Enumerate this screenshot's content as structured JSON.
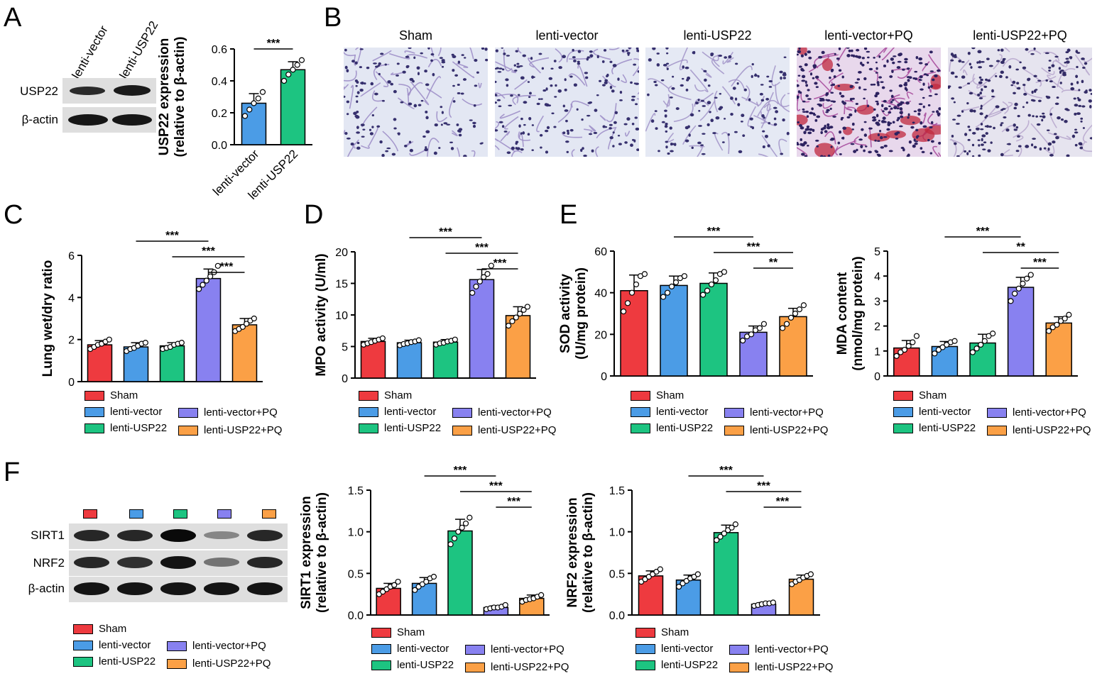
{
  "colors": {
    "Sham": "#ee3a3f",
    "lenti-vector": "#4b9ce6",
    "lenti-USP22": "#1dc481",
    "lenti-vector+PQ": "#8881f0",
    "lenti-USP22+PQ": "#fba046"
  },
  "panels": {
    "A": "A",
    "B": "B",
    "C": "C",
    "D": "D",
    "E": "E",
    "F": "F"
  },
  "blotA": {
    "lanes": [
      "lenti-vector",
      "lenti-USP22"
    ],
    "rows": [
      "USP22",
      "β-actin"
    ]
  },
  "micro": {
    "titles": [
      "Sham",
      "lenti-vector",
      "lenti-USP22",
      "lenti-vector+PQ",
      "lenti-USP22+PQ"
    ]
  },
  "blotF": {
    "rows": [
      "SIRT1",
      "NRF2",
      "β-actin"
    ]
  },
  "legend": {
    "items": [
      "Sham",
      "lenti-vector",
      "lenti-USP22",
      "lenti-vector+PQ",
      "lenti-USP22+PQ"
    ]
  },
  "chart_data": [
    {
      "id": "A",
      "type": "bar",
      "categories": [
        "lenti-vector",
        "lenti-USP22"
      ],
      "values": [
        0.26,
        0.47
      ],
      "errors": [
        0.06,
        0.05
      ],
      "points": [
        [
          0.18,
          0.22,
          0.26,
          0.29,
          0.33
        ],
        [
          0.4,
          0.44,
          0.47,
          0.5,
          0.53
        ]
      ],
      "ylabel": [
        "USP22 expression",
        "(relative to β-actin)"
      ],
      "ylim": [
        0,
        0.6
      ],
      "yticks": [
        "0.0",
        "0.2",
        "0.4",
        "0.6"
      ],
      "sig": [
        {
          "from": 0,
          "to": 1,
          "label": "***"
        }
      ]
    },
    {
      "id": "C",
      "type": "bar",
      "categories": [
        "Sham",
        "lenti-vector",
        "lenti-USP22",
        "lenti-vector+PQ",
        "lenti-USP22+PQ"
      ],
      "values": [
        1.75,
        1.65,
        1.7,
        4.9,
        2.7
      ],
      "errors": [
        0.2,
        0.2,
        0.15,
        0.45,
        0.3
      ],
      "points": [
        [
          1.55,
          1.65,
          1.75,
          1.8,
          1.9,
          2.0
        ],
        [
          1.45,
          1.55,
          1.6,
          1.7,
          1.8,
          1.85
        ],
        [
          1.55,
          1.6,
          1.65,
          1.75,
          1.8,
          1.85
        ],
        [
          4.4,
          4.6,
          4.8,
          5.0,
          5.2,
          5.5
        ],
        [
          2.4,
          2.5,
          2.6,
          2.75,
          2.9,
          3.0
        ]
      ],
      "ylabel": [
        "Lung wet/dry ratio"
      ],
      "ylim": [
        0,
        6
      ],
      "yticks": [
        "0",
        "2",
        "4",
        "6"
      ],
      "sig": [
        {
          "from": 1,
          "to": 3,
          "label": "***"
        },
        {
          "from": 2,
          "to": 4,
          "label": "***"
        },
        {
          "from": 3,
          "to": 4,
          "label": "***"
        }
      ]
    },
    {
      "id": "D",
      "type": "bar",
      "categories": [
        "Sham",
        "lenti-vector",
        "lenti-USP22",
        "lenti-vector+PQ",
        "lenti-USP22+PQ"
      ],
      "values": [
        5.8,
        5.6,
        5.7,
        15.6,
        9.9
      ],
      "errors": [
        0.5,
        0.4,
        0.4,
        1.6,
        1.4
      ],
      "points": [
        [
          5.3,
          5.5,
          5.7,
          5.9,
          6.1,
          6.3
        ],
        [
          5.2,
          5.4,
          5.5,
          5.7,
          5.8,
          6.0
        ],
        [
          5.3,
          5.5,
          5.6,
          5.8,
          5.9,
          6.1
        ],
        [
          13.5,
          14.5,
          15.3,
          16.0,
          16.5,
          17.8
        ],
        [
          8.3,
          9.0,
          9.6,
          10.2,
          10.8,
          11.3
        ]
      ],
      "ylabel": [
        "MPO activity (U/ml)"
      ],
      "ylim": [
        0,
        20
      ],
      "yticks": [
        "0",
        "5",
        "10",
        "15",
        "20"
      ],
      "sig": [
        {
          "from": 1,
          "to": 3,
          "label": "***"
        },
        {
          "from": 2,
          "to": 4,
          "label": "***"
        },
        {
          "from": 3,
          "to": 4,
          "label": "***"
        }
      ]
    },
    {
      "id": "E1",
      "type": "bar",
      "categories": [
        "Sham",
        "lenti-vector",
        "lenti-USP22",
        "lenti-vector+PQ",
        "lenti-USP22+PQ"
      ],
      "values": [
        41,
        43.5,
        44.5,
        21,
        28.5
      ],
      "errors": [
        7.5,
        4.5,
        5,
        3,
        4
      ],
      "points": [
        [
          31,
          35,
          40,
          44,
          48,
          49
        ],
        [
          38,
          40,
          43,
          45,
          47,
          48
        ],
        [
          39,
          41,
          44,
          46,
          49,
          50
        ],
        [
          17,
          19,
          20,
          22,
          23,
          25
        ],
        [
          23,
          25,
          28,
          30,
          32,
          34
        ]
      ],
      "ylabel": [
        "SOD activity",
        "(U/mg protein)"
      ],
      "ylim": [
        0,
        60
      ],
      "yticks": [
        "0",
        "20",
        "40",
        "60"
      ],
      "sig": [
        {
          "from": 1,
          "to": 3,
          "label": "***"
        },
        {
          "from": 2,
          "to": 4,
          "label": "***"
        },
        {
          "from": 3,
          "to": 4,
          "label": "**"
        }
      ]
    },
    {
      "id": "E2",
      "type": "bar",
      "categories": [
        "Sham",
        "lenti-vector",
        "lenti-USP22",
        "lenti-vector+PQ",
        "lenti-USP22+PQ"
      ],
      "values": [
        1.12,
        1.18,
        1.32,
        3.55,
        2.12
      ],
      "errors": [
        0.3,
        0.2,
        0.35,
        0.4,
        0.25
      ],
      "points": [
        [
          0.8,
          0.95,
          1.05,
          1.2,
          1.35,
          1.6
        ],
        [
          0.9,
          1.05,
          1.15,
          1.25,
          1.35,
          1.4
        ],
        [
          0.95,
          1.1,
          1.25,
          1.4,
          1.6,
          1.7
        ],
        [
          3.0,
          3.3,
          3.5,
          3.7,
          3.9,
          4.05
        ],
        [
          1.8,
          1.95,
          2.05,
          2.2,
          2.3,
          2.45
        ]
      ],
      "ylabel": [
        "MDA content",
        "(nmol/mg protein)"
      ],
      "ylim": [
        0,
        5
      ],
      "yticks": [
        "0",
        "1",
        "2",
        "3",
        "4",
        "5"
      ],
      "sig": [
        {
          "from": 1,
          "to": 3,
          "label": "***"
        },
        {
          "from": 2,
          "to": 4,
          "label": "**"
        },
        {
          "from": 3,
          "to": 4,
          "label": "***"
        }
      ]
    },
    {
      "id": "F1",
      "type": "bar",
      "categories": [
        "Sham",
        "lenti-vector",
        "lenti-USP22",
        "lenti-vector+PQ",
        "lenti-USP22+PQ"
      ],
      "values": [
        0.32,
        0.38,
        1.01,
        0.09,
        0.2
      ],
      "errors": [
        0.06,
        0.07,
        0.14,
        0.02,
        0.04
      ],
      "points": [
        [
          0.25,
          0.28,
          0.31,
          0.34,
          0.36,
          0.4
        ],
        [
          0.3,
          0.34,
          0.37,
          0.4,
          0.44,
          0.46
        ],
        [
          0.85,
          0.92,
          1.0,
          1.05,
          1.1,
          1.17
        ],
        [
          0.07,
          0.08,
          0.09,
          0.09,
          0.1,
          0.12
        ],
        [
          0.16,
          0.18,
          0.19,
          0.2,
          0.22,
          0.24
        ]
      ],
      "ylabel": [
        "SIRT1 expression",
        "(relative to β-actin)"
      ],
      "ylim": [
        0,
        1.5
      ],
      "yticks": [
        "0.0",
        "0.5",
        "1.0",
        "1.5"
      ],
      "sig": [
        {
          "from": 1,
          "to": 3,
          "label": "***"
        },
        {
          "from": 2,
          "to": 4,
          "label": "***"
        },
        {
          "from": 3,
          "to": 4,
          "label": "***"
        }
      ]
    },
    {
      "id": "F2",
      "type": "bar",
      "categories": [
        "Sham",
        "lenti-vector",
        "lenti-USP22",
        "lenti-vector+PQ",
        "lenti-USP22+PQ"
      ],
      "values": [
        0.47,
        0.42,
        0.99,
        0.13,
        0.43
      ],
      "errors": [
        0.06,
        0.06,
        0.09,
        0.02,
        0.05
      ],
      "points": [
        [
          0.4,
          0.43,
          0.46,
          0.49,
          0.52,
          0.55
        ],
        [
          0.34,
          0.38,
          0.41,
          0.44,
          0.46,
          0.49
        ],
        [
          0.9,
          0.94,
          0.98,
          1.02,
          1.05,
          1.09
        ],
        [
          0.11,
          0.12,
          0.13,
          0.14,
          0.14,
          0.15
        ],
        [
          0.37,
          0.4,
          0.42,
          0.45,
          0.47,
          0.49
        ]
      ],
      "ylabel": [
        "NRF2 expression",
        "(relative to β-actin)"
      ],
      "ylim": [
        0,
        1.5
      ],
      "yticks": [
        "0.0",
        "0.5",
        "1.0",
        "1.5"
      ],
      "sig": [
        {
          "from": 1,
          "to": 3,
          "label": "***"
        },
        {
          "from": 2,
          "to": 4,
          "label": "***"
        },
        {
          "from": 3,
          "to": 4,
          "label": "***"
        }
      ]
    }
  ]
}
